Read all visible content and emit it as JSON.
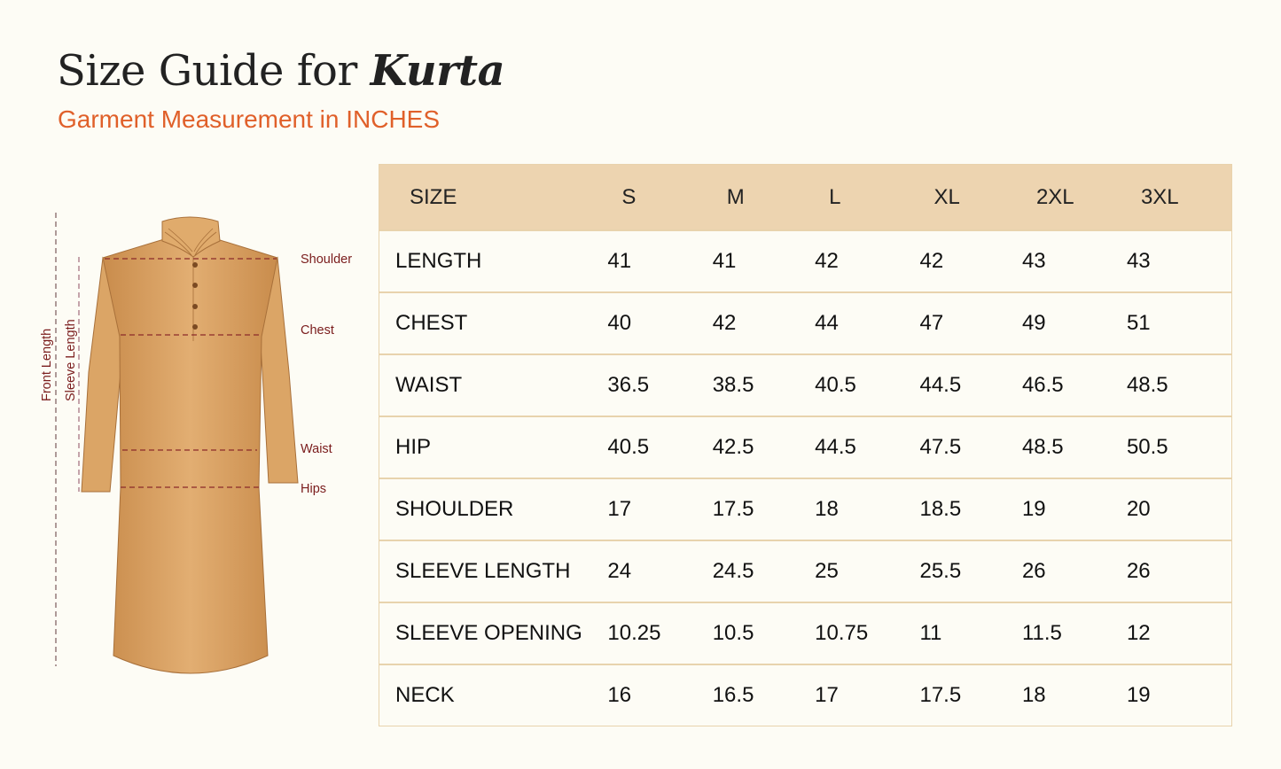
{
  "header": {
    "title_prefix": "Size Guide for",
    "title_emphasis": "Kurta",
    "subtitle": "Garment Measurement in INCHES"
  },
  "illustration": {
    "labels": {
      "shoulder": "Shoulder",
      "chest": "Chest",
      "waist": "Waist",
      "hips": "Hips",
      "front_length": "Front Length",
      "sleeve_length": "Sleeve Length"
    },
    "colors": {
      "fabric": "#d9a366",
      "measure_line": "#8b2a2a"
    }
  },
  "table": {
    "columns": [
      "SIZE",
      "S",
      "M",
      "L",
      "XL",
      "2XL",
      "3XL"
    ],
    "rows": [
      {
        "label": "LENGTH",
        "values": [
          "41",
          "41",
          "42",
          "42",
          "43",
          "43"
        ]
      },
      {
        "label": "CHEST",
        "values": [
          "40",
          "42",
          "44",
          "47",
          "49",
          "51"
        ]
      },
      {
        "label": "WAIST",
        "values": [
          "36.5",
          "38.5",
          "40.5",
          "44.5",
          "46.5",
          "48.5"
        ]
      },
      {
        "label": "HIP",
        "values": [
          "40.5",
          "42.5",
          "44.5",
          "47.5",
          "48.5",
          "50.5"
        ]
      },
      {
        "label": "SHOULDER",
        "values": [
          "17",
          "17.5",
          "18",
          "18.5",
          "19",
          "20"
        ]
      },
      {
        "label": "SLEEVE LENGTH",
        "values": [
          "24",
          "24.5",
          "25",
          "25.5",
          "26",
          "26"
        ]
      },
      {
        "label": "SLEEVE OPENING",
        "values": [
          "10.25",
          "10.5",
          "10.75",
          "11",
          "11.5",
          "12"
        ]
      },
      {
        "label": "NECK",
        "values": [
          "16",
          "16.5",
          "17",
          "17.5",
          "18",
          "19"
        ]
      }
    ]
  }
}
